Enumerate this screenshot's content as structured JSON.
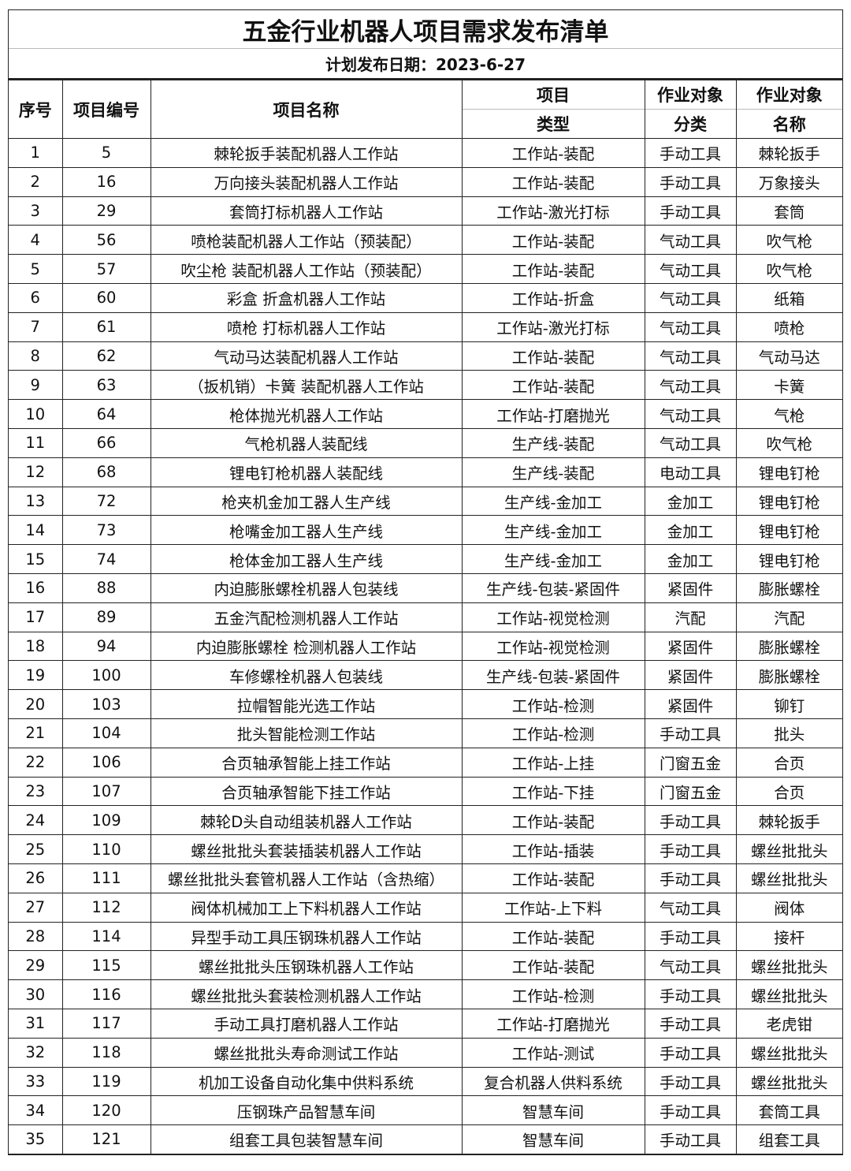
{
  "title": "五金行业机器人项目需求发布清单",
  "date_line": "计划发布日期：2023-6-27",
  "headers": {
    "seq": "序号",
    "code": "项目编号",
    "name": "项目名称",
    "type_top": "项目",
    "type_bottom": "类型",
    "cat_top": "作业对象",
    "cat_bottom": "分类",
    "obj_top": "作业对象",
    "obj_bottom": "名称"
  },
  "rows": [
    [
      "1",
      "5",
      "棘轮扳手装配机器人工作站",
      "工作站-装配",
      "手动工具",
      "棘轮扳手"
    ],
    [
      "2",
      "16",
      "万向接头装配机器人工作站",
      "工作站-装配",
      "手动工具",
      "万象接头"
    ],
    [
      "3",
      "29",
      "套筒打标机器人工作站",
      "工作站-激光打标",
      "手动工具",
      "套筒"
    ],
    [
      "4",
      "56",
      "喷枪装配机器人工作站（预装配）",
      "工作站-装配",
      "气动工具",
      "吹气枪"
    ],
    [
      "5",
      "57",
      "吹尘枪 装配机器人工作站（预装配）",
      "工作站-装配",
      "气动工具",
      "吹气枪"
    ],
    [
      "6",
      "60",
      "彩盒 折盒机器人工作站",
      "工作站-折盒",
      "气动工具",
      "纸箱"
    ],
    [
      "7",
      "61",
      "喷枪 打标机器人工作站",
      "工作站-激光打标",
      "气动工具",
      "喷枪"
    ],
    [
      "8",
      "62",
      "气动马达装配机器人工作站",
      "工作站-装配",
      "气动工具",
      "气动马达"
    ],
    [
      "9",
      "63",
      "（扳机销）卡簧 装配机器人工作站",
      "工作站-装配",
      "气动工具",
      "卡簧"
    ],
    [
      "10",
      "64",
      "枪体抛光机器人工作站",
      "工作站-打磨抛光",
      "气动工具",
      "气枪"
    ],
    [
      "11",
      "66",
      "气枪机器人装配线",
      "生产线-装配",
      "气动工具",
      "吹气枪"
    ],
    [
      "12",
      "68",
      "锂电钉枪机器人装配线",
      "生产线-装配",
      "电动工具",
      "锂电钉枪"
    ],
    [
      "13",
      "72",
      "枪夹机金加工器人生产线",
      "生产线-金加工",
      "金加工",
      "锂电钉枪"
    ],
    [
      "14",
      "73",
      "枪嘴金加工器人生产线",
      "生产线-金加工",
      "金加工",
      "锂电钉枪"
    ],
    [
      "15",
      "74",
      "枪体金加工器人生产线",
      "生产线-金加工",
      "金加工",
      "锂电钉枪"
    ],
    [
      "16",
      "88",
      "内迫膨胀螺栓机器人包装线",
      "生产线-包装-紧固件",
      "紧固件",
      "膨胀螺栓"
    ],
    [
      "17",
      "89",
      "五金汽配检测机器人工作站",
      "工作站-视觉检测",
      "汽配",
      "汽配"
    ],
    [
      "18",
      "94",
      "内迫膨胀螺栓 检测机器人工作站",
      "工作站-视觉检测",
      "紧固件",
      "膨胀螺栓"
    ],
    [
      "19",
      "100",
      "车修螺栓机器人包装线",
      "生产线-包装-紧固件",
      "紧固件",
      "膨胀螺栓"
    ],
    [
      "20",
      "103",
      "拉帽智能光选工作站",
      "工作站-检测",
      "紧固件",
      "铆钉"
    ],
    [
      "21",
      "104",
      "批头智能检测工作站",
      "工作站-检测",
      "手动工具",
      "批头"
    ],
    [
      "22",
      "106",
      "合页轴承智能上挂工作站",
      "工作站-上挂",
      "门窗五金",
      "合页"
    ],
    [
      "23",
      "107",
      "合页轴承智能下挂工作站",
      "工作站-下挂",
      "门窗五金",
      "合页"
    ],
    [
      "24",
      "109",
      "棘轮D头自动组装机器人工作站",
      "工作站-装配",
      "手动工具",
      "棘轮扳手"
    ],
    [
      "25",
      "110",
      "螺丝批批头套装插装机器人工作站",
      "工作站-插装",
      "手动工具",
      "螺丝批批头"
    ],
    [
      "26",
      "111",
      "螺丝批批头套管机器人工作站（含热缩）",
      "工作站-装配",
      "手动工具",
      "螺丝批批头"
    ],
    [
      "27",
      "112",
      "阀体机械加工上下料机器人工作站",
      "工作站-上下料",
      "气动工具",
      "阀体"
    ],
    [
      "28",
      "114",
      "异型手动工具压钢珠机器人工作站",
      "工作站-装配",
      "手动工具",
      "接杆"
    ],
    [
      "29",
      "115",
      "螺丝批批头压钢珠机器人工作站",
      "工作站-装配",
      "气动工具",
      "螺丝批批头"
    ],
    [
      "30",
      "116",
      "螺丝批批头套装检测机器人工作站",
      "工作站-检测",
      "手动工具",
      "螺丝批批头"
    ],
    [
      "31",
      "117",
      "手动工具打磨机器人工作站",
      "工作站-打磨抛光",
      "手动工具",
      "老虎钳"
    ],
    [
      "32",
      "118",
      "螺丝批批头寿命测试工作站",
      "工作站-测试",
      "手动工具",
      "螺丝批批头"
    ],
    [
      "33",
      "119",
      "机加工设备自动化集中供料系统",
      "复合机器人供料系统",
      "手动工具",
      "螺丝批批头"
    ],
    [
      "34",
      "120",
      "压钢珠产品智慧车间",
      "智慧车间",
      "手动工具",
      "套筒工具"
    ],
    [
      "35",
      "121",
      "组套工具包装智慧车间",
      "智慧车间",
      "手动工具",
      "组套工具"
    ]
  ]
}
